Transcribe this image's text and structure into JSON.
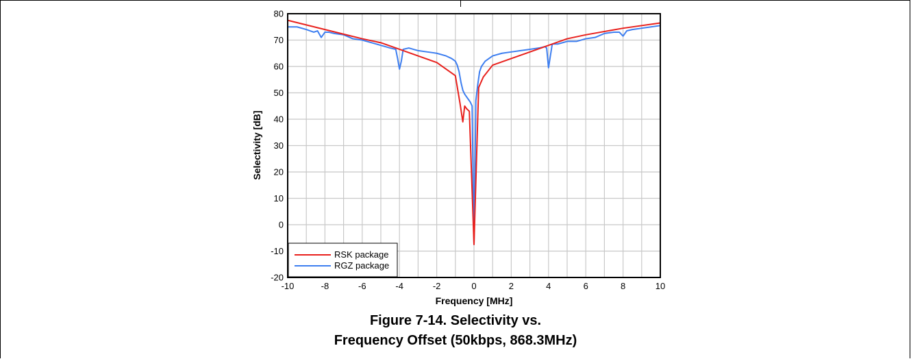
{
  "chart_data": {
    "type": "line",
    "xlabel": "Frequency [MHz]",
    "ylabel": "Selectivity [dB]",
    "xlim": [
      -10,
      10
    ],
    "ylim": [
      -20,
      80
    ],
    "xticks": [
      -10,
      -8,
      -6,
      -4,
      -2,
      0,
      2,
      4,
      6,
      8,
      10
    ],
    "yticks": [
      -20,
      -10,
      0,
      10,
      20,
      30,
      40,
      50,
      60,
      70,
      80
    ],
    "grid": true,
    "legend_position": "bottom-left",
    "series": [
      {
        "name": "RSK package",
        "color": "#e8201c",
        "x": [
          -10,
          -8,
          -6,
          -5,
          -4,
          -2,
          -1,
          -0.75,
          -0.6,
          -0.5,
          -0.4,
          -0.25,
          0,
          0.25,
          0.5,
          1,
          2,
          4,
          5,
          6,
          8,
          10
        ],
        "y": [
          77.5,
          74.0,
          70.5,
          69.0,
          66.5,
          61.5,
          56.5,
          46.0,
          39.0,
          45.0,
          44.0,
          43.0,
          -7.5,
          52.0,
          56.0,
          60.5,
          63.0,
          68.0,
          70.5,
          72.0,
          74.5,
          76.5
        ]
      },
      {
        "name": "RGZ package",
        "color": "#3d7ef0",
        "x": [
          -10,
          -9.5,
          -9,
          -8.6,
          -8.4,
          -8.2,
          -8,
          -7.8,
          -7.5,
          -7,
          -6.5,
          -6,
          -5.5,
          -5,
          -4.5,
          -4.2,
          -4.1,
          -4.0,
          -3.9,
          -3.8,
          -3.5,
          -3,
          -2.5,
          -2,
          -1.5,
          -1.2,
          -1,
          -0.9,
          -0.8,
          -0.7,
          -0.6,
          -0.5,
          -0.4,
          -0.3,
          -0.2,
          -0.1,
          0,
          0.1,
          0.2,
          0.3,
          0.4,
          0.5,
          0.6,
          0.7,
          0.8,
          0.9,
          1,
          1.5,
          2,
          2.5,
          3,
          3.5,
          3.8,
          3.9,
          4.0,
          4.1,
          4.2,
          4.5,
          5,
          5.5,
          6,
          6.5,
          7,
          7.5,
          7.8,
          8.0,
          8.2,
          8.5,
          9,
          9.5,
          10
        ],
        "y": [
          75.0,
          75.0,
          74.0,
          73.0,
          73.5,
          71.0,
          73.0,
          73.0,
          72.5,
          72.0,
          70.5,
          70.0,
          69.0,
          68.0,
          67.0,
          66.5,
          63.0,
          59.0,
          62.0,
          66.5,
          67.0,
          66.0,
          65.5,
          65.0,
          64.0,
          63.0,
          62.0,
          60.5,
          58.0,
          54.0,
          51.0,
          49.5,
          48.5,
          47.5,
          46.5,
          45.0,
          -7.5,
          47.0,
          53.0,
          58.0,
          60.0,
          61.0,
          62.0,
          62.5,
          63.0,
          63.5,
          64.0,
          65.0,
          65.5,
          66.0,
          66.5,
          67.0,
          67.5,
          67.0,
          59.5,
          64.0,
          68.5,
          68.5,
          69.5,
          69.5,
          70.5,
          71.0,
          72.5,
          73.0,
          73.0,
          71.5,
          73.5,
          74.0,
          74.5,
          75.0,
          75.5
        ]
      }
    ]
  },
  "caption": {
    "line1": "Figure 7-14. Selectivity vs.",
    "line2": "Frequency Offset (50kbps, 868.3MHz)"
  }
}
